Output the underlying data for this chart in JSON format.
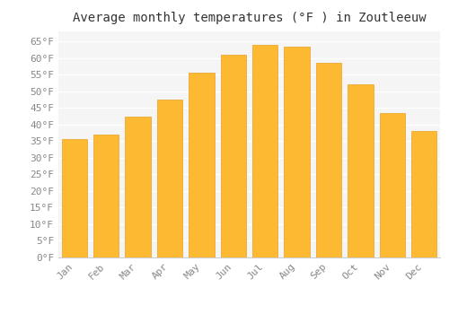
{
  "months": [
    "Jan",
    "Feb",
    "Mar",
    "Apr",
    "May",
    "Jun",
    "Jul",
    "Aug",
    "Sep",
    "Oct",
    "Nov",
    "Dec"
  ],
  "values": [
    35.5,
    37.0,
    42.5,
    47.5,
    55.5,
    61.0,
    64.0,
    63.5,
    58.5,
    52.0,
    43.5,
    38.0
  ],
  "bar_color_top": "#FDB931",
  "bar_color_bottom": "#F9A825",
  "bar_edge_color": "#E8A020",
  "title": "Average monthly temperatures (°F ) in Zoutleeuw",
  "ylim": [
    0,
    68
  ],
  "yticks": [
    0,
    5,
    10,
    15,
    20,
    25,
    30,
    35,
    40,
    45,
    50,
    55,
    60,
    65
  ],
  "background_color": "#ffffff",
  "plot_bg_color": "#f5f5f5",
  "grid_color": "#ffffff",
  "title_fontsize": 10,
  "tick_fontsize": 8,
  "tick_color": "#888888",
  "font_family": "monospace"
}
